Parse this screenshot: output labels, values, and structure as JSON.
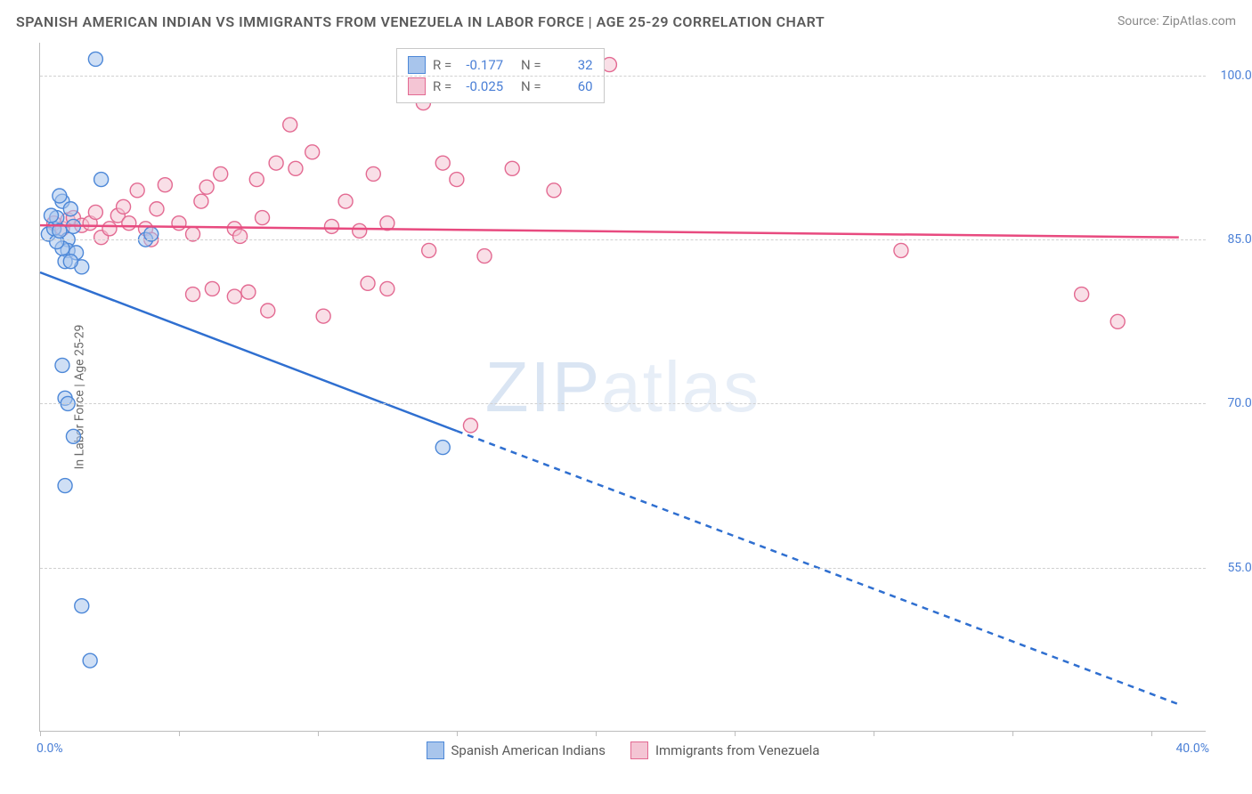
{
  "header": {
    "title": "SPANISH AMERICAN INDIAN VS IMMIGRANTS FROM VENEZUELA IN LABOR FORCE | AGE 25-29 CORRELATION CHART",
    "source": "Source: ZipAtlas.com"
  },
  "axes": {
    "y_label": "In Labor Force | Age 25-29",
    "x_min": 0.0,
    "x_max": 42.0,
    "y_min": 40.0,
    "y_max": 103.0,
    "y_ticks": [
      55.0,
      70.0,
      85.0,
      100.0
    ],
    "y_tick_labels": [
      "55.0%",
      "70.0%",
      "85.0%",
      "100.0%"
    ],
    "x_ticks": [
      0,
      5,
      10,
      15,
      20,
      25,
      30,
      35,
      40
    ],
    "x_start_label": "0.0%",
    "x_end_label": "40.0%"
  },
  "series": {
    "a": {
      "name": "Spanish American Indians",
      "fill": "#a8c5ec",
      "stroke": "#4d88d8",
      "line_color": "#2f6fd0",
      "r_value": "-0.177",
      "n_value": "32",
      "points": [
        [
          0.3,
          85.5
        ],
        [
          0.5,
          86.0
        ],
        [
          0.6,
          87.0
        ],
        [
          0.8,
          88.5
        ],
        [
          1.0,
          85.0
        ],
        [
          1.2,
          86.2
        ],
        [
          1.0,
          84.0
        ],
        [
          1.3,
          83.8
        ],
        [
          0.9,
          83.0
        ],
        [
          1.5,
          82.5
        ],
        [
          0.8,
          84.2
        ],
        [
          0.6,
          84.8
        ],
        [
          0.4,
          87.2
        ],
        [
          2.0,
          101.5
        ],
        [
          2.2,
          90.5
        ],
        [
          0.7,
          89.0
        ],
        [
          1.1,
          87.8
        ],
        [
          3.8,
          85.0
        ],
        [
          4.0,
          85.5
        ],
        [
          0.8,
          73.5
        ],
        [
          0.9,
          70.5
        ],
        [
          1.0,
          70.0
        ],
        [
          1.2,
          67.0
        ],
        [
          0.9,
          62.5
        ],
        [
          1.1,
          83.0
        ],
        [
          0.7,
          85.8
        ],
        [
          1.5,
          51.5
        ],
        [
          1.8,
          46.5
        ],
        [
          14.5,
          66.0
        ]
      ],
      "trend": {
        "x1": 0.0,
        "y1": 82.0,
        "x2_solid": 15.0,
        "y2_solid": 67.5,
        "x2_dash": 41.0,
        "y2_dash": 42.5
      }
    },
    "b": {
      "name": "Immigrants from Venezuela",
      "fill": "#f4c5d4",
      "stroke": "#e36a92",
      "line_color": "#e84a7f",
      "r_value": "-0.025",
      "n_value": "60",
      "points": [
        [
          0.5,
          86.5
        ],
        [
          0.8,
          86.0
        ],
        [
          1.0,
          86.8
        ],
        [
          1.2,
          87.0
        ],
        [
          1.5,
          86.3
        ],
        [
          1.8,
          86.5
        ],
        [
          2.0,
          87.5
        ],
        [
          2.2,
          85.2
        ],
        [
          2.5,
          86.0
        ],
        [
          2.8,
          87.2
        ],
        [
          3.0,
          88.0
        ],
        [
          3.2,
          86.5
        ],
        [
          3.5,
          89.5
        ],
        [
          3.8,
          86.0
        ],
        [
          4.0,
          85.0
        ],
        [
          4.2,
          87.8
        ],
        [
          4.5,
          90.0
        ],
        [
          5.0,
          86.5
        ],
        [
          5.5,
          85.5
        ],
        [
          5.8,
          88.5
        ],
        [
          6.0,
          89.8
        ],
        [
          6.5,
          91.0
        ],
        [
          7.0,
          86.0
        ],
        [
          7.2,
          85.3
        ],
        [
          7.8,
          90.5
        ],
        [
          8.0,
          87.0
        ],
        [
          8.5,
          92.0
        ],
        [
          9.0,
          95.5
        ],
        [
          9.2,
          91.5
        ],
        [
          9.8,
          93.0
        ],
        [
          10.5,
          86.2
        ],
        [
          11.0,
          88.5
        ],
        [
          11.5,
          85.8
        ],
        [
          12.0,
          91.0
        ],
        [
          12.5,
          86.5
        ],
        [
          14.5,
          92.0
        ],
        [
          15.0,
          90.5
        ],
        [
          13.8,
          97.5
        ],
        [
          6.2,
          80.5
        ],
        [
          7.0,
          79.8
        ],
        [
          7.5,
          80.2
        ],
        [
          8.2,
          78.5
        ],
        [
          5.5,
          80.0
        ],
        [
          11.8,
          81.0
        ],
        [
          12.5,
          80.5
        ],
        [
          14.0,
          84.0
        ],
        [
          17.0,
          91.5
        ],
        [
          18.5,
          89.5
        ],
        [
          20.5,
          101.0
        ],
        [
          16.0,
          83.5
        ],
        [
          10.2,
          78.0
        ],
        [
          15.5,
          68.0
        ],
        [
          31.0,
          84.0
        ],
        [
          37.5,
          80.0
        ],
        [
          38.8,
          77.5
        ]
      ],
      "trend": {
        "x1": 0.0,
        "y1": 86.3,
        "x2": 41.0,
        "y2": 85.2
      }
    }
  },
  "legend": {
    "r_label": "R =",
    "n_label": "N ="
  },
  "watermark": {
    "bold": "ZIP",
    "thin": "atlas"
  },
  "style": {
    "background": "#ffffff",
    "grid_color": "#d0d0d0",
    "axis_color": "#bdbdbd",
    "tick_label_color": "#4a7fd6",
    "title_color": "#5a5a5a",
    "marker_radius": 8,
    "marker_opacity": 0.55,
    "line_width": 2.5
  }
}
